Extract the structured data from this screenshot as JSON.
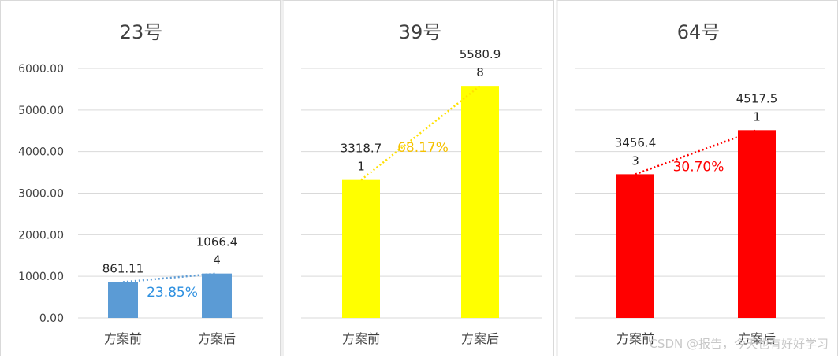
{
  "watermark": "CSDN @报告，今天也有好好学习",
  "chart_data": [
    {
      "type": "bar",
      "title": "23号",
      "categories": [
        "方案前",
        "方案后"
      ],
      "values": [
        861.11,
        1066.44
      ],
      "value_labels": [
        [
          "861.11"
        ],
        [
          "1066.4",
          "4"
        ]
      ],
      "ylim": [
        0,
        6000
      ],
      "yticks": [
        "0.00",
        "1000.00",
        "2000.00",
        "3000.00",
        "4000.00",
        "5000.00",
        "6000.00"
      ],
      "ytick_values": [
        0,
        1000,
        2000,
        3000,
        4000,
        5000,
        6000
      ],
      "show_yaxis": true,
      "grid": true,
      "bar_color": "#5b9bd5",
      "annotation": "23.85%",
      "annotation_color": "#2e90e0",
      "trend_color": "#5b9bd5"
    },
    {
      "type": "bar",
      "title": "39号",
      "categories": [
        "方案前",
        "方案后"
      ],
      "values": [
        3318.71,
        5580.98
      ],
      "value_labels": [
        [
          "3318.7",
          "1"
        ],
        [
          "5580.9",
          "8"
        ]
      ],
      "ylim": [
        0,
        6000
      ],
      "ytick_values": [
        0,
        1000,
        2000,
        3000,
        4000,
        5000,
        6000
      ],
      "show_yaxis": false,
      "grid": true,
      "bar_color": "#ffff00",
      "annotation": "68.17%",
      "annotation_color": "#f5c000",
      "trend_color": "#ffe000"
    },
    {
      "type": "bar",
      "title": "64号",
      "categories": [
        "方案前",
        "方案后"
      ],
      "values": [
        3456.43,
        4517.51
      ],
      "value_labels": [
        [
          "3456.4",
          "3"
        ],
        [
          "4517.5",
          "1"
        ]
      ],
      "ylim": [
        0,
        6000
      ],
      "ytick_values": [
        0,
        1000,
        2000,
        3000,
        4000,
        5000,
        6000
      ],
      "show_yaxis": false,
      "grid": true,
      "bar_color": "#ff0000",
      "annotation": "30.70%",
      "annotation_color": "#ff0000",
      "trend_color": "#ff0000"
    }
  ]
}
